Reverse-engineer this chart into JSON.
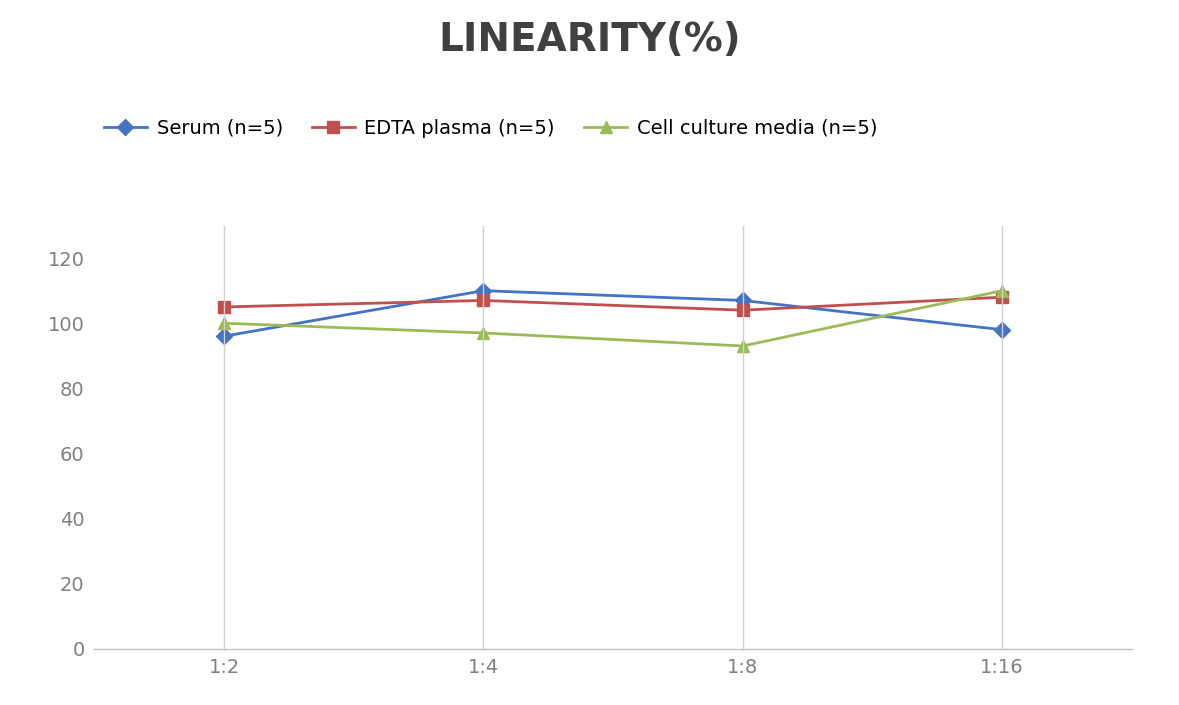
{
  "title": "LINEARITY(%)",
  "x_labels": [
    "1:2",
    "1:4",
    "1:8",
    "1:16"
  ],
  "x_positions": [
    0,
    1,
    2,
    3
  ],
  "series": [
    {
      "label": "Serum (n=5)",
      "values": [
        96,
        110,
        107,
        98
      ],
      "color": "#4472C4",
      "marker": "D",
      "marker_size": 8,
      "linewidth": 2
    },
    {
      "label": "EDTA plasma (n=5)",
      "values": [
        105,
        107,
        104,
        108
      ],
      "color": "#C0504D",
      "marker": "s",
      "marker_size": 8,
      "linewidth": 2
    },
    {
      "label": "Cell culture media (n=5)",
      "values": [
        100,
        97,
        93,
        110
      ],
      "color": "#9BBB59",
      "marker": "^",
      "marker_size": 8,
      "linewidth": 2
    }
  ],
  "ylim": [
    0,
    130
  ],
  "yticks": [
    0,
    20,
    40,
    60,
    80,
    100,
    120
  ],
  "title_fontsize": 28,
  "tick_fontsize": 14,
  "legend_fontsize": 14,
  "background_color": "#ffffff",
  "grid_color": "#d0d0d0",
  "title_color": "#404040"
}
